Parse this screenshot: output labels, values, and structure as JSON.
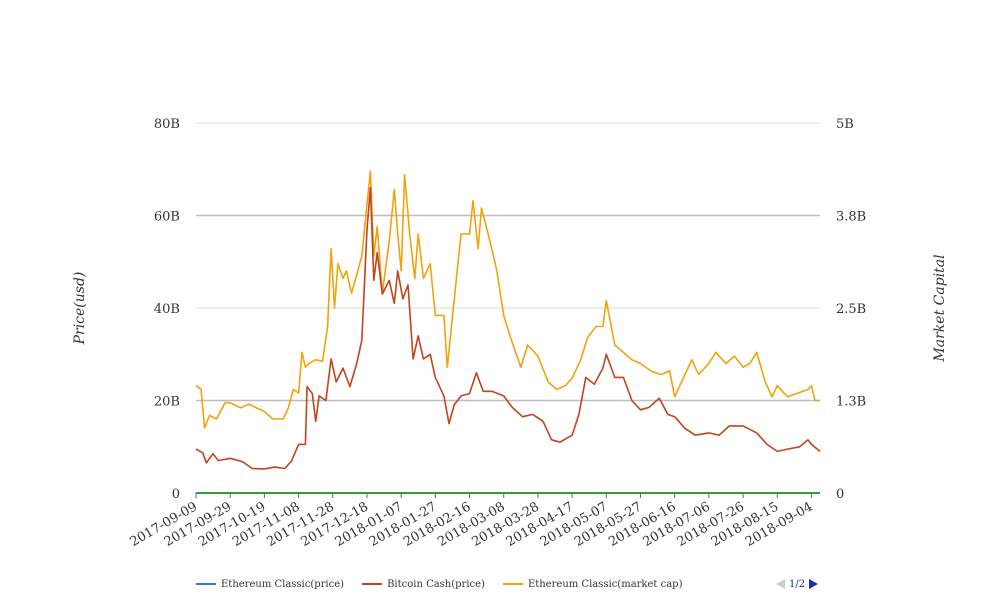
{
  "chart_data": {
    "type": "line",
    "title": "",
    "ylabel_left": "Price(usd)",
    "ylabel_right": "Market Capital",
    "y_left": {
      "ticks": [
        "0",
        "20B",
        "40B",
        "60B",
        "80B"
      ],
      "range": [
        0,
        80000000000
      ]
    },
    "y_right": {
      "ticks": [
        "0",
        "1.3B",
        "2.5B",
        "3.8B",
        "5B"
      ],
      "range": [
        0,
        5000000000
      ]
    },
    "x_ticks": [
      "2017-09-09",
      "2017-09-29",
      "2017-10-19",
      "2017-11-08",
      "2017-11-28",
      "2017-12-18",
      "2018-01-07",
      "2018-01-27",
      "2018-02-16",
      "2018-03-08",
      "2018-03-28",
      "2018-04-17",
      "2018-05-07",
      "2018-05-27",
      "2018-06-16",
      "2018-07-06",
      "2018-07-26",
      "2018-08-15",
      "2018-09-04"
    ],
    "x_range": [
      "2017-09-09",
      "2018-09-09"
    ],
    "grid": true,
    "legend_position": "bottom-left",
    "series": [
      {
        "name": "Ethereum Classic(price)",
        "axis": "left",
        "color": "#2f7ec2",
        "points": [
          [
            "2017-09-09",
            0
          ],
          [
            "2018-09-09",
            0
          ]
        ]
      },
      {
        "name": "Bitcoin Cash(price)",
        "axis": "left",
        "color": "#c2441c",
        "points": [
          [
            "2017-09-09",
            9500000000.0
          ],
          [
            "2017-09-13",
            8700000000.0
          ],
          [
            "2017-09-15",
            6500000000.0
          ],
          [
            "2017-09-19",
            8500000000.0
          ],
          [
            "2017-09-22",
            7000000000.0
          ],
          [
            "2017-09-29",
            7500000000.0
          ],
          [
            "2017-10-06",
            6800000000.0
          ],
          [
            "2017-10-12",
            5300000000.0
          ],
          [
            "2017-10-19",
            5200000000.0
          ],
          [
            "2017-10-25",
            5600000000.0
          ],
          [
            "2017-10-31",
            5300000000.0
          ],
          [
            "2017-11-04",
            7000000000.0
          ],
          [
            "2017-11-08",
            10500000000.0
          ],
          [
            "2017-11-12",
            10500000000.0
          ],
          [
            "2017-11-13",
            23000000000.0
          ],
          [
            "2017-11-16",
            21500000000.0
          ],
          [
            "2017-11-18",
            15500000000.0
          ],
          [
            "2017-11-20",
            21000000000.0
          ],
          [
            "2017-11-24",
            20000000000.0
          ],
          [
            "2017-11-27",
            29000000000.0
          ],
          [
            "2017-11-30",
            24000000000.0
          ],
          [
            "2017-12-04",
            27000000000.0
          ],
          [
            "2017-12-08",
            23000000000.0
          ],
          [
            "2017-12-12",
            28000000000.0
          ],
          [
            "2017-12-15",
            33000000000.0
          ],
          [
            "2017-12-18",
            57000000000.0
          ],
          [
            "2017-12-20",
            66000000000.0
          ],
          [
            "2017-12-22",
            46000000000.0
          ],
          [
            "2017-12-24",
            52000000000.0
          ],
          [
            "2017-12-27",
            43000000000.0
          ],
          [
            "2017-12-31",
            46000000000.0
          ],
          [
            "2018-01-03",
            41000000000.0
          ],
          [
            "2018-01-05",
            48000000000.0
          ],
          [
            "2018-01-08",
            42000000000.0
          ],
          [
            "2018-01-11",
            45000000000.0
          ],
          [
            "2018-01-14",
            29000000000.0
          ],
          [
            "2018-01-17",
            34000000000.0
          ],
          [
            "2018-01-20",
            29000000000.0
          ],
          [
            "2018-01-24",
            30000000000.0
          ],
          [
            "2018-01-27",
            25000000000.0
          ],
          [
            "2018-02-01",
            21000000000.0
          ],
          [
            "2018-02-04",
            15000000000.0
          ],
          [
            "2018-02-07",
            19000000000.0
          ],
          [
            "2018-02-11",
            21000000000.0
          ],
          [
            "2018-02-16",
            21500000000.0
          ],
          [
            "2018-02-20",
            26000000000.0
          ],
          [
            "2018-02-24",
            22000000000.0
          ],
          [
            "2018-03-01",
            22000000000.0
          ],
          [
            "2018-03-08",
            21000000000.0
          ],
          [
            "2018-03-13",
            18500000000.0
          ],
          [
            "2018-03-19",
            16500000000.0
          ],
          [
            "2018-03-25",
            17000000000.0
          ],
          [
            "2018-03-31",
            15500000000.0
          ],
          [
            "2018-04-05",
            11500000000.0
          ],
          [
            "2018-04-10",
            11000000000.0
          ],
          [
            "2018-04-17",
            12500000000.0
          ],
          [
            "2018-04-21",
            17000000000.0
          ],
          [
            "2018-04-25",
            25000000000.0
          ],
          [
            "2018-04-30",
            23500000000.0
          ],
          [
            "2018-05-05",
            27000000000.0
          ],
          [
            "2018-05-07",
            30000000000.0
          ],
          [
            "2018-05-12",
            25000000000.0
          ],
          [
            "2018-05-17",
            25000000000.0
          ],
          [
            "2018-05-22",
            20000000000.0
          ],
          [
            "2018-05-27",
            18000000000.0
          ],
          [
            "2018-06-01",
            18500000000.0
          ],
          [
            "2018-06-07",
            20500000000.0
          ],
          [
            "2018-06-12",
            17000000000.0
          ],
          [
            "2018-06-16",
            16500000000.0
          ],
          [
            "2018-06-22",
            14000000000.0
          ],
          [
            "2018-06-28",
            12500000000.0
          ],
          [
            "2018-07-06",
            13000000000.0
          ],
          [
            "2018-07-12",
            12500000000.0
          ],
          [
            "2018-07-18",
            14500000000.0
          ],
          [
            "2018-07-26",
            14500000000.0
          ],
          [
            "2018-08-03",
            13000000000.0
          ],
          [
            "2018-08-09",
            10500000000.0
          ],
          [
            "2018-08-15",
            9000000000.0
          ],
          [
            "2018-08-21",
            9500000000.0
          ],
          [
            "2018-08-28",
            10000000000.0
          ],
          [
            "2018-09-02",
            11500000000.0
          ],
          [
            "2018-09-04",
            10500000000.0
          ],
          [
            "2018-09-09",
            9000000000.0
          ]
        ]
      },
      {
        "name": "Ethereum Classic(market cap)",
        "axis": "right",
        "color": "#f2a20c",
        "points": [
          [
            "2017-09-09",
            1450000000.0
          ],
          [
            "2017-09-12",
            1400000000.0
          ],
          [
            "2017-09-14",
            880000000.0
          ],
          [
            "2017-09-17",
            1050000000.0
          ],
          [
            "2017-09-21",
            1000000000.0
          ],
          [
            "2017-09-26",
            1220000000.0
          ],
          [
            "2017-09-29",
            1220000000.0
          ],
          [
            "2017-10-05",
            1150000000.0
          ],
          [
            "2017-10-10",
            1200000000.0
          ],
          [
            "2017-10-19",
            1100000000.0
          ],
          [
            "2017-10-24",
            1000000000.0
          ],
          [
            "2017-10-30",
            1000000000.0
          ],
          [
            "2017-11-02",
            1150000000.0
          ],
          [
            "2017-11-05",
            1400000000.0
          ],
          [
            "2017-11-08",
            1350000000.0
          ],
          [
            "2017-11-10",
            1900000000.0
          ],
          [
            "2017-11-12",
            1700000000.0
          ],
          [
            "2017-11-14",
            1750000000.0
          ],
          [
            "2017-11-18",
            1800000000.0
          ],
          [
            "2017-11-22",
            1780000000.0
          ],
          [
            "2017-11-25",
            2250000000.0
          ],
          [
            "2017-11-27",
            3300000000.0
          ],
          [
            "2017-11-29",
            2500000000.0
          ],
          [
            "2017-12-01",
            3100000000.0
          ],
          [
            "2017-12-04",
            2900000000.0
          ],
          [
            "2017-12-06",
            3000000000.0
          ],
          [
            "2017-12-09",
            2700000000.0
          ],
          [
            "2017-12-12",
            2950000000.0
          ],
          [
            "2017-12-15",
            3200000000.0
          ],
          [
            "2017-12-18",
            3900000000.0
          ],
          [
            "2017-12-20",
            4350000000.0
          ],
          [
            "2017-12-22",
            3200000000.0
          ],
          [
            "2017-12-24",
            3600000000.0
          ],
          [
            "2017-12-27",
            2700000000.0
          ],
          [
            "2017-12-31",
            3400000000.0
          ],
          [
            "2018-01-03",
            4100000000.0
          ],
          [
            "2018-01-05",
            3500000000.0
          ],
          [
            "2018-01-07",
            3000000000.0
          ],
          [
            "2018-01-09",
            4300000000.0
          ],
          [
            "2018-01-12",
            3500000000.0
          ],
          [
            "2018-01-15",
            2900000000.0
          ],
          [
            "2018-01-17",
            3500000000.0
          ],
          [
            "2018-01-20",
            2900000000.0
          ],
          [
            "2018-01-24",
            3100000000.0
          ],
          [
            "2018-01-27",
            2400000000.0
          ],
          [
            "2018-02-01",
            2400000000.0
          ],
          [
            "2018-02-03",
            1700000000.0
          ],
          [
            "2018-02-07",
            2600000000.0
          ],
          [
            "2018-02-11",
            3500000000.0
          ],
          [
            "2018-02-16",
            3500000000.0
          ],
          [
            "2018-02-18",
            3950000000.0
          ],
          [
            "2018-02-21",
            3300000000.0
          ],
          [
            "2018-02-23",
            3850000000.0
          ],
          [
            "2018-02-28",
            3400000000.0
          ],
          [
            "2018-03-04",
            3000000000.0
          ],
          [
            "2018-03-08",
            2400000000.0
          ],
          [
            "2018-03-12",
            2100000000.0
          ],
          [
            "2018-03-18",
            1700000000.0
          ],
          [
            "2018-03-22",
            2000000000.0
          ],
          [
            "2018-03-28",
            1850000000.0
          ],
          [
            "2018-04-03",
            1500000000.0
          ],
          [
            "2018-04-08",
            1400000000.0
          ],
          [
            "2018-04-13",
            1450000000.0
          ],
          [
            "2018-04-17",
            1550000000.0
          ],
          [
            "2018-04-22",
            1800000000.0
          ],
          [
            "2018-04-26",
            2100000000.0
          ],
          [
            "2018-05-01",
            2250000000.0
          ],
          [
            "2018-05-05",
            2250000000.0
          ],
          [
            "2018-05-07",
            2600000000.0
          ],
          [
            "2018-05-12",
            2000000000.0
          ],
          [
            "2018-05-17",
            1900000000.0
          ],
          [
            "2018-05-22",
            1800000000.0
          ],
          [
            "2018-05-27",
            1750000000.0
          ],
          [
            "2018-06-02",
            1650000000.0
          ],
          [
            "2018-06-08",
            1600000000.0
          ],
          [
            "2018-06-13",
            1650000000.0
          ],
          [
            "2018-06-16",
            1300000000.0
          ],
          [
            "2018-06-21",
            1550000000.0
          ],
          [
            "2018-06-26",
            1800000000.0
          ],
          [
            "2018-06-30",
            1600000000.0
          ],
          [
            "2018-07-06",
            1750000000.0
          ],
          [
            "2018-07-10",
            1900000000.0
          ],
          [
            "2018-07-16",
            1750000000.0
          ],
          [
            "2018-07-21",
            1850000000.0
          ],
          [
            "2018-07-26",
            1700000000.0
          ],
          [
            "2018-07-30",
            1750000000.0
          ],
          [
            "2018-08-03",
            1900000000.0
          ],
          [
            "2018-08-08",
            1500000000.0
          ],
          [
            "2018-08-12",
            1300000000.0
          ],
          [
            "2018-08-15",
            1450000000.0
          ],
          [
            "2018-08-21",
            1300000000.0
          ],
          [
            "2018-08-27",
            1350000000.0
          ],
          [
            "2018-09-02",
            1400000000.0
          ],
          [
            "2018-09-04",
            1450000000.0
          ],
          [
            "2018-09-06",
            1250000000.0
          ],
          [
            "2018-09-09",
            1250000000.0
          ]
        ]
      }
    ]
  },
  "legend": {
    "items": [
      {
        "label": "Ethereum Classic(price)",
        "color": "#2f7ec2"
      },
      {
        "label": "Bitcoin Cash(price)",
        "color": "#c2441c"
      },
      {
        "label": "Ethereum Classic(market cap)",
        "color": "#f2a20c"
      }
    ],
    "pager": "1/2"
  }
}
